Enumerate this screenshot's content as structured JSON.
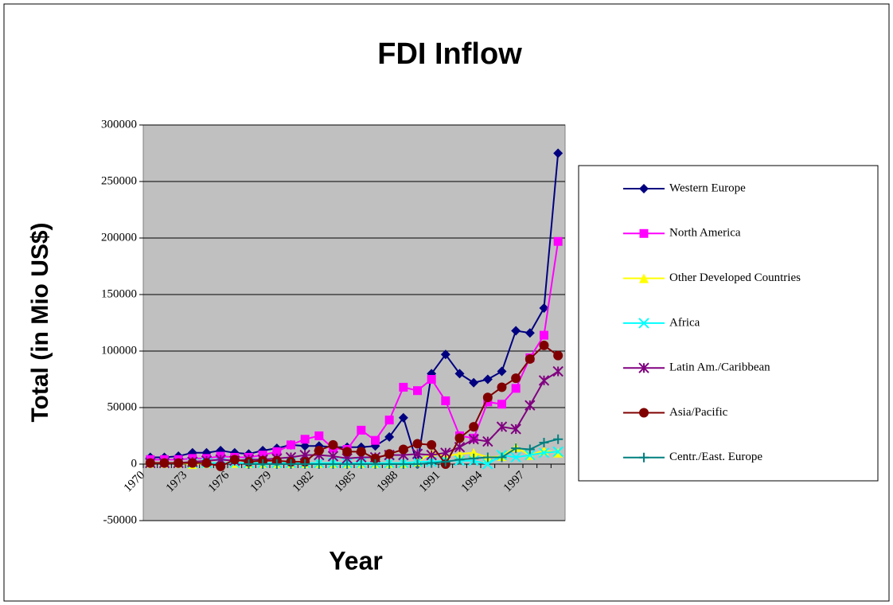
{
  "chart_data": {
    "type": "line",
    "title": "FDI Inflow",
    "x_label": "Year",
    "y_label": "Total (in Mio US$)",
    "categories": [
      1970,
      null,
      null,
      1973,
      null,
      null,
      1976,
      null,
      null,
      1979,
      null,
      null,
      1982,
      null,
      null,
      1985,
      null,
      null,
      1988,
      null,
      null,
      1991,
      null,
      null,
      1994,
      null,
      null,
      1997,
      null,
      null
    ],
    "ylim": [
      -50000,
      300000
    ],
    "yticks": [
      -50000,
      0,
      50000,
      100000,
      150000,
      200000,
      250000,
      300000
    ],
    "grid": true,
    "legend": "right",
    "series": [
      {
        "name": "Western Europe",
        "color": "#000080",
        "marker": "diamond",
        "values": [
          6000,
          6000,
          7000,
          10000,
          10000,
          12000,
          10000,
          9000,
          12000,
          14000,
          17000,
          16000,
          16000,
          15000,
          15000,
          15000,
          16000,
          24000,
          41000,
          0,
          80000,
          97000,
          80000,
          72000,
          75000,
          82000,
          118000,
          116000,
          138000,
          275000
        ]
      },
      {
        "name": "North America",
        "color": "#ff00ff",
        "marker": "square",
        "values": [
          4000,
          4000,
          4000,
          5000,
          5000,
          7000,
          6000,
          6000,
          8000,
          11000,
          17000,
          22000,
          25000,
          14000,
          13000,
          30000,
          21000,
          39000,
          68000,
          65000,
          75000,
          56000,
          25000,
          23000,
          55000,
          53000,
          67000,
          94000,
          114000,
          197000
        ]
      },
      {
        "name": "Other Developed Countries",
        "color": "#ffff00",
        "marker": "triangle",
        "values": [
          1000,
          1000,
          1000,
          0,
          1000,
          1000,
          1000,
          1000,
          1000,
          1000,
          1000,
          1000,
          1000,
          1000,
          1000,
          1000,
          1000,
          1000,
          1000,
          2000,
          10000,
          7000,
          9000,
          10000,
          6000,
          7000,
          15000,
          8000,
          12000,
          10000
        ]
      },
      {
        "name": "Africa",
        "color": "#00ffff",
        "marker": "x",
        "values": [
          1000,
          1000,
          1000,
          1000,
          1000,
          1000,
          1000,
          1000,
          1000,
          1000,
          1000,
          1000,
          1000,
          1000,
          1000,
          1000,
          1000,
          1000,
          1000,
          2000,
          2000,
          3000,
          3000,
          3000,
          0,
          8000,
          6000,
          8000,
          10000,
          11000
        ]
      },
      {
        "name": "Latin Am./Caribbean",
        "color": "#800080",
        "marker": "star",
        "values": [
          1000,
          1000,
          1000,
          2000,
          3000,
          4000,
          3000,
          4000,
          4000,
          5000,
          6000,
          8000,
          8000,
          7000,
          5000,
          6000,
          6000,
          8000,
          8000,
          9000,
          8000,
          10000,
          15000,
          22000,
          20000,
          33000,
          31000,
          52000,
          74000,
          82000
        ]
      },
      {
        "name": "Asia/Pacific",
        "color": "#800000",
        "marker": "circle",
        "values": [
          1000,
          1000,
          1000,
          1000,
          1000,
          -2000,
          4000,
          2000,
          3000,
          3000,
          2000,
          2000,
          12000,
          17000,
          11000,
          11000,
          5000,
          9000,
          13000,
          18000,
          17000,
          0,
          23000,
          33000,
          59000,
          68000,
          76000,
          93000,
          105000,
          96000
        ]
      },
      {
        "name": "Centr./East. Europe",
        "color": "#008080",
        "marker": "plus",
        "values": [
          null,
          null,
          null,
          null,
          null,
          null,
          null,
          0,
          0,
          0,
          0,
          0,
          0,
          0,
          0,
          0,
          0,
          0,
          0,
          0,
          1000,
          2000,
          4000,
          5000,
          6000,
          6000,
          14000,
          13000,
          19000,
          22000
        ]
      }
    ]
  }
}
